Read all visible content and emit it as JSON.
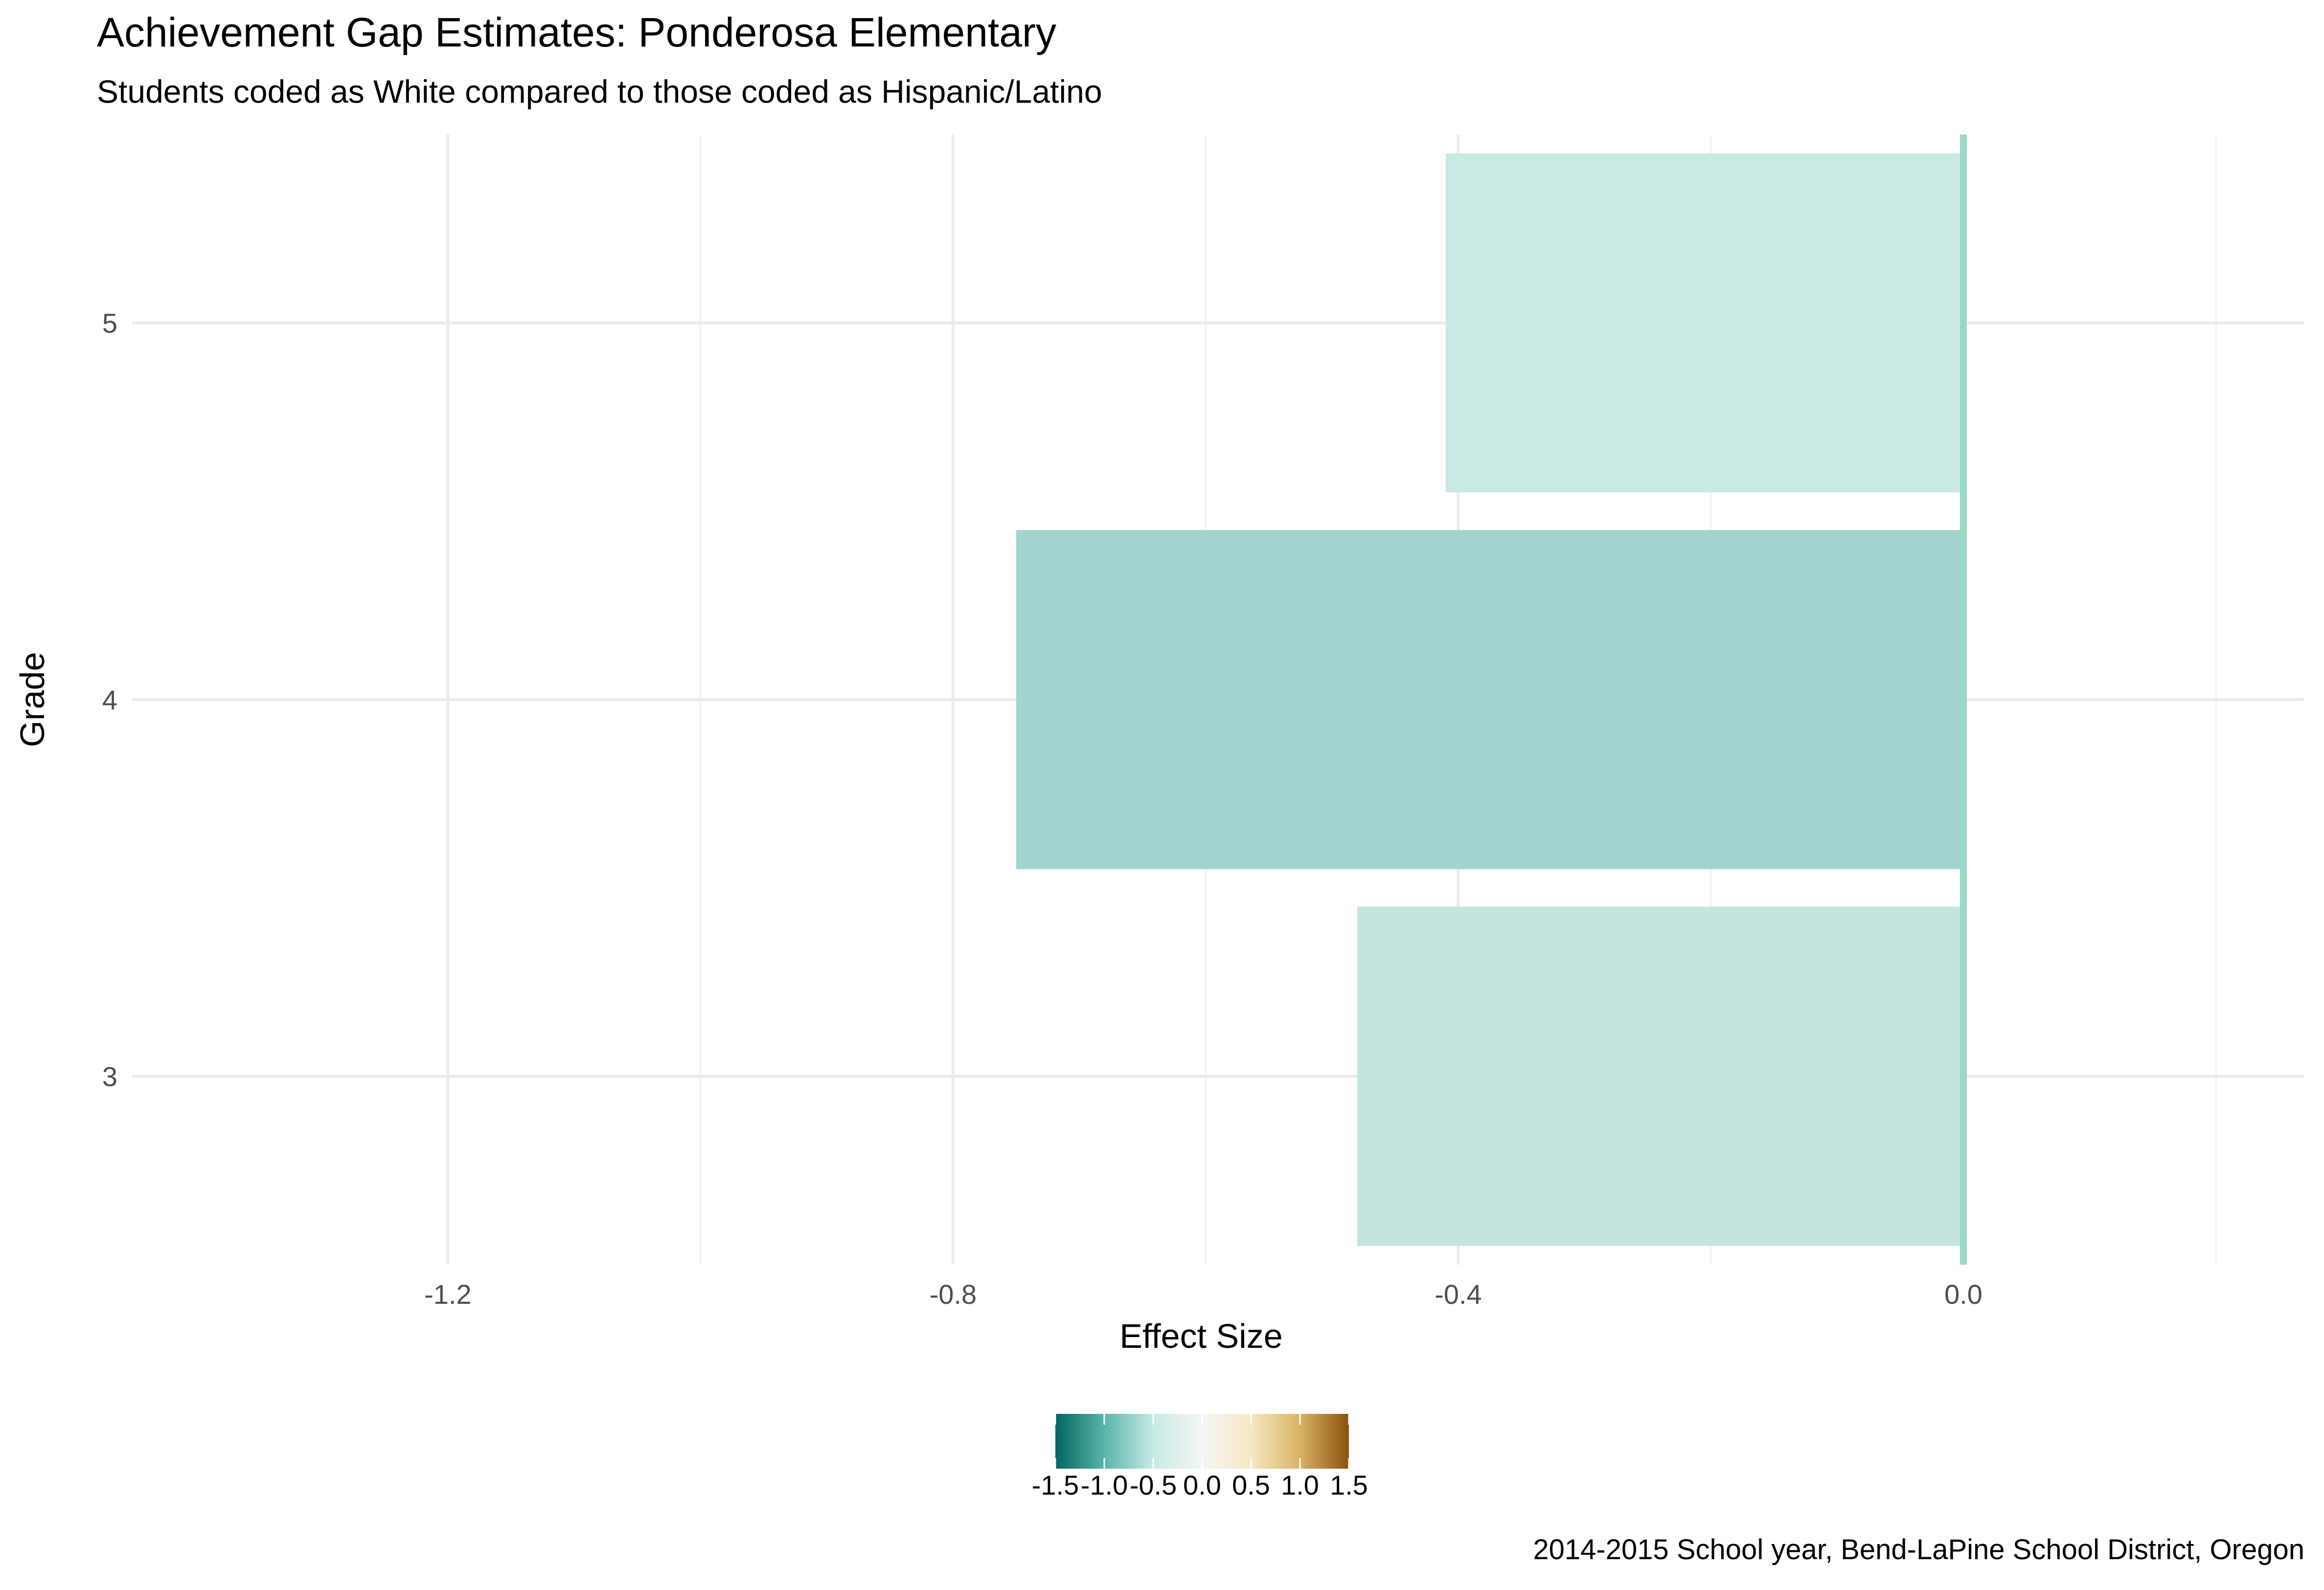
{
  "chart_data": {
    "type": "bar",
    "orientation": "horizontal",
    "title": "Achievement Gap Estimates: Ponderosa Elementary",
    "subtitle": "Students coded as White compared to those coded as Hispanic/Latino",
    "caption": "2014-2015 School year, Bend-LaPine School District, Oregon",
    "xlabel": "Effect Size",
    "ylabel": "Grade",
    "categories": [
      "3",
      "4",
      "5"
    ],
    "values": [
      -0.48,
      -0.75,
      -0.41
    ],
    "bar_colors": [
      "#c4e4e0",
      "#a2d3cf",
      "#cbe9e4"
    ],
    "xlim": [
      -1.45,
      0.27
    ],
    "x_ticks": [
      -1.2,
      -0.8,
      -0.4,
      0.0
    ],
    "x_tick_labels": [
      "-1.2",
      "-0.8",
      "-0.4",
      "0.0"
    ],
    "x_minor_ticks": [
      -1.0,
      -0.6,
      -0.2,
      0.2
    ],
    "reference_line": {
      "x": 0,
      "color": "#9ad8c8"
    },
    "grid": true,
    "legend": {
      "type": "colorbar",
      "position": "bottom",
      "range": [
        -1.5,
        1.5
      ],
      "ticks": [
        -1.5,
        -1.0,
        -0.5,
        0.0,
        0.5,
        1.0,
        1.5
      ],
      "tick_labels": [
        "-1.5",
        "-1.0",
        "-0.5",
        "0.0",
        "0.5",
        "1.0",
        "1.5"
      ],
      "colors": [
        "#01665e",
        "#5ab4ac",
        "#c7eae5",
        "#f5f5f5",
        "#f6e8c3",
        "#d8b365",
        "#8c510a"
      ]
    }
  }
}
